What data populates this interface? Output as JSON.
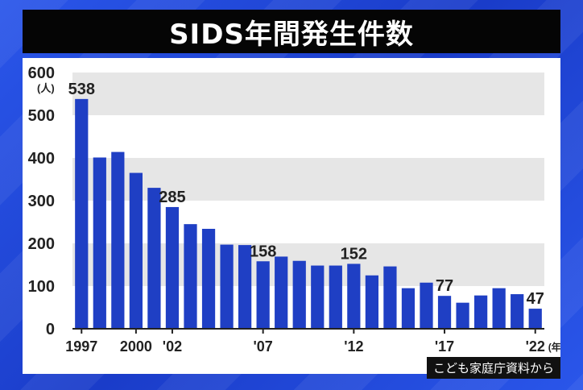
{
  "title": "SIDS年間発生件数",
  "source": "こども家庭庁資料から",
  "colors": {
    "bar": "#1f3fc4",
    "band": "#e6e6e6",
    "title_bg": "#050505",
    "background": "#1f44d6"
  },
  "chart_data": {
    "type": "bar",
    "unit_y": "(人)",
    "unit_x": "(年)",
    "ylim": [
      0,
      600
    ],
    "yticks": [
      0,
      100,
      200,
      300,
      400,
      500,
      600
    ],
    "categories": [
      "1997",
      "1998",
      "1999",
      "2000",
      "2001",
      "2002",
      "2003",
      "2004",
      "2005",
      "2006",
      "2007",
      "2008",
      "2009",
      "2010",
      "2011",
      "2012",
      "2013",
      "2014",
      "2015",
      "2016",
      "2017",
      "2018",
      "2019",
      "2020",
      "2021",
      "2022"
    ],
    "values": [
      538,
      401,
      414,
      365,
      330,
      285,
      245,
      234,
      197,
      196,
      158,
      169,
      159,
      148,
      148,
      152,
      125,
      146,
      95,
      108,
      77,
      61,
      78,
      95,
      81,
      47
    ],
    "tick_labels": [
      {
        "index": 0,
        "label": "1997"
      },
      {
        "index": 3,
        "label": "2000"
      },
      {
        "index": 5,
        "label": "'02"
      },
      {
        "index": 10,
        "label": "'07"
      },
      {
        "index": 15,
        "label": "'12"
      },
      {
        "index": 20,
        "label": "'17"
      },
      {
        "index": 25,
        "label": "'22"
      }
    ],
    "data_labels": [
      {
        "index": 0,
        "label": "538"
      },
      {
        "index": 5,
        "label": "285"
      },
      {
        "index": 10,
        "label": "158"
      },
      {
        "index": 15,
        "label": "152"
      },
      {
        "index": 20,
        "label": "77"
      },
      {
        "index": 25,
        "label": "47"
      }
    ],
    "grid": "alternating bands"
  }
}
